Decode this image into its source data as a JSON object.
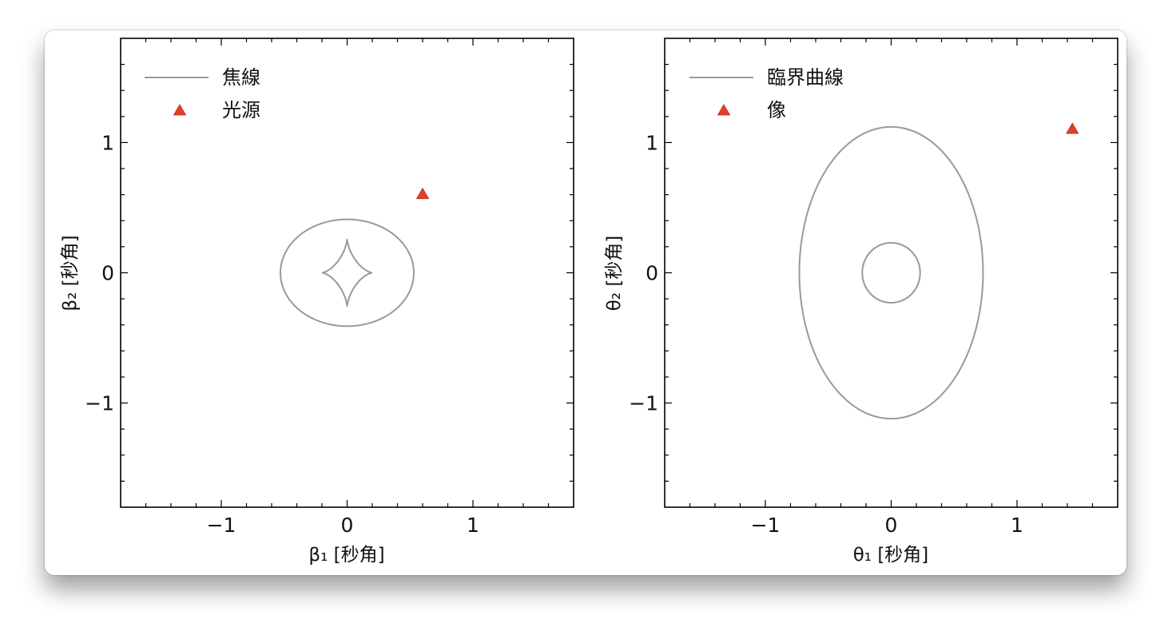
{
  "chart_data": [
    {
      "type": "line",
      "xlabel": "β₁ [秒角]",
      "ylabel": "β₂ [秒角]",
      "xlim": [
        -1.8,
        1.8
      ],
      "ylim": [
        -1.8,
        1.8
      ],
      "xticks": [
        -1,
        0,
        1
      ],
      "yticks": [
        -1,
        0,
        1
      ],
      "xtick_labels": [
        "−1",
        "0",
        "1"
      ],
      "ytick_labels": [
        "−1",
        "0",
        "1"
      ],
      "legend_placement": "top-left",
      "series": [
        {
          "name": "焦線",
          "kind": "line",
          "color": "#999999",
          "shapes": [
            {
              "shape": "ellipse",
              "center": [
                0,
                0
              ],
              "semi_axes": [
                0.53,
                0.41
              ]
            },
            {
              "shape": "astroid",
              "center": [
                0,
                0
              ],
              "semi_axes": [
                0.2,
                0.26
              ]
            }
          ]
        },
        {
          "name": "光源",
          "kind": "marker",
          "marker": "triangle",
          "color": "#e0402a",
          "points": [
            [
              0.6,
              0.6
            ]
          ]
        }
      ]
    },
    {
      "type": "line",
      "xlabel": "θ₁ [秒角]",
      "ylabel": "θ₂ [秒角]",
      "xlim": [
        -1.8,
        1.8
      ],
      "ylim": [
        -1.8,
        1.8
      ],
      "xticks": [
        -1,
        0,
        1
      ],
      "yticks": [
        -1,
        0,
        1
      ],
      "xtick_labels": [
        "−1",
        "0",
        "1"
      ],
      "ytick_labels": [
        "−1",
        "0",
        "1"
      ],
      "legend_placement": "top-left",
      "series": [
        {
          "name": "臨界曲線",
          "kind": "line",
          "color": "#999999",
          "shapes": [
            {
              "shape": "ellipse",
              "center": [
                0,
                0
              ],
              "semi_axes": [
                0.73,
                1.12
              ]
            },
            {
              "shape": "ellipse",
              "center": [
                0,
                0
              ],
              "semi_axes": [
                0.23,
                0.23
              ]
            }
          ]
        },
        {
          "name": "像",
          "kind": "marker",
          "marker": "triangle",
          "color": "#e0402a",
          "points": [
            [
              1.44,
              1.1
            ]
          ]
        }
      ]
    }
  ]
}
